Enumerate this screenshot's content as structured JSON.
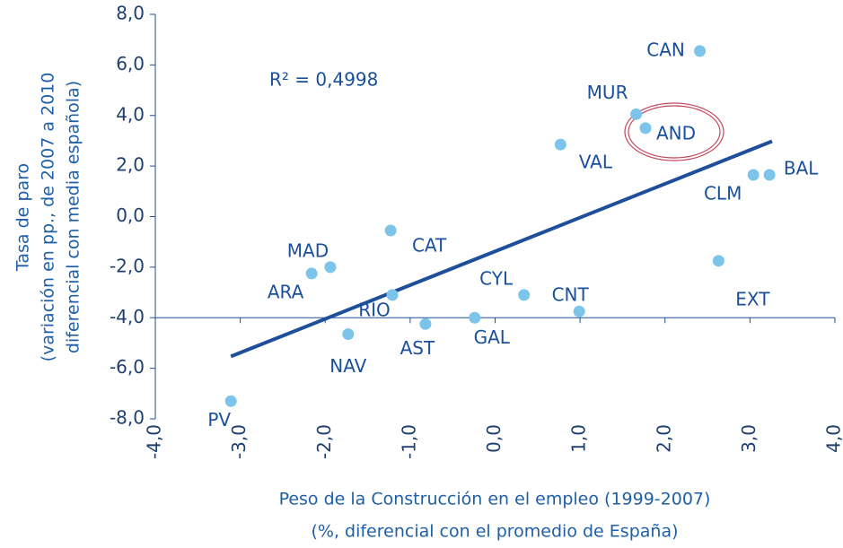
{
  "chart_data": {
    "type": "scatter",
    "annotation": "R² = 0,4998",
    "xlabel": [
      "Peso de la Construcción en el empleo (1999-2007)",
      "(%, diferencial con el promedio de España)"
    ],
    "ylabel": [
      "Tasa de paro",
      "(variación  en pp., de 2007 a 2010",
      "diferencial con media española)"
    ],
    "point_labels": [
      "PV",
      "NAV",
      "ARA",
      "MAD",
      "RIO",
      "CAT",
      "AST",
      "GAL",
      "CYL",
      "CNT",
      "VAL",
      "MUR",
      "AND",
      "CAN",
      "CLM",
      "BAL",
      "EXT"
    ],
    "x": [
      -3.11,
      -1.73,
      -2.16,
      -1.94,
      -1.21,
      -1.23,
      -0.82,
      -0.24,
      0.34,
      0.99,
      0.77,
      1.66,
      1.77,
      2.41,
      3.04,
      3.23,
      2.63
    ],
    "values": [
      -7.3,
      -4.65,
      -2.25,
      -2.0,
      -3.1,
      -0.55,
      -4.25,
      -4.0,
      -3.1,
      -3.75,
      2.85,
      4.05,
      3.5,
      6.55,
      1.65,
      1.65,
      -1.75
    ],
    "color": "#7cc4ea",
    "trendline": {
      "x": [
        -3.11,
        3.26
      ],
      "y": [
        -5.53,
        2.98
      ],
      "color": "#1f4e9a"
    },
    "xlim": [
      -4,
      4
    ],
    "ylim": [
      -8,
      8
    ],
    "xticks": [
      {
        "value": -4,
        "label": "-4,0"
      },
      {
        "value": -3,
        "label": "-3,0"
      },
      {
        "value": -2,
        "label": "-2,0"
      },
      {
        "value": -1,
        "label": "-1,0"
      },
      {
        "value": 0,
        "label": "0,0"
      },
      {
        "value": 1,
        "label": "1,0"
      },
      {
        "value": 2,
        "label": "2,0"
      },
      {
        "value": 3,
        "label": "3,0"
      },
      {
        "value": 4,
        "label": "4,0"
      }
    ],
    "yticks": [
      {
        "value": 8,
        "label": "8,0"
      },
      {
        "value": 6,
        "label": "6,0"
      },
      {
        "value": 4,
        "label": "4,0"
      },
      {
        "value": 2,
        "label": "2,0"
      },
      {
        "value": 0,
        "label": "0,0"
      },
      {
        "value": -2,
        "label": "-2,0"
      },
      {
        "value": -4,
        "label": "-4,0"
      },
      {
        "value": -6,
        "label": "-6,0"
      },
      {
        "value": -8,
        "label": "-8,0"
      }
    ],
    "x_axis_crossing": -4
  }
}
